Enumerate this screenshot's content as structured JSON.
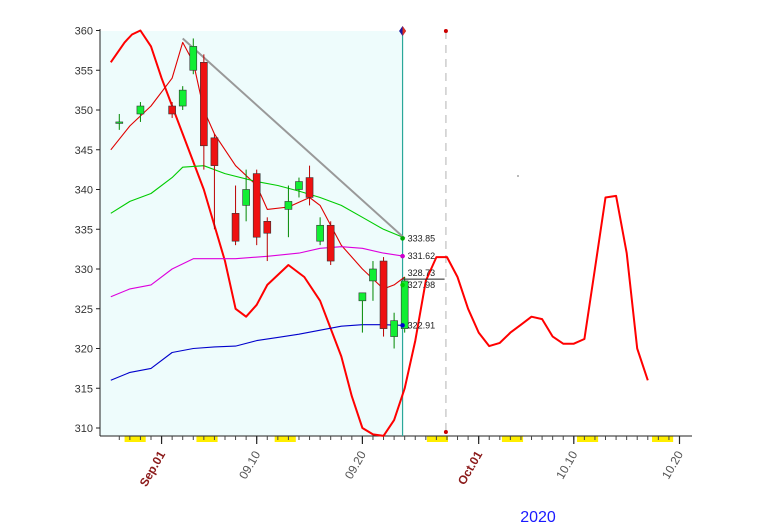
{
  "chart_data": {
    "type": "candlestick",
    "year_label": "2020",
    "ylim": [
      309,
      361
    ],
    "y_ticks": [
      310,
      315,
      320,
      325,
      330,
      335,
      340,
      345,
      350,
      355,
      360
    ],
    "x_ticks": [
      {
        "day": 1,
        "label": "Sep.01",
        "bold": true
      },
      {
        "day": 10,
        "label": "09.10",
        "bold": false
      },
      {
        "day": 20,
        "label": "09.20",
        "bold": false
      },
      {
        "day": 31,
        "label": "Oct.01",
        "bold": true
      },
      {
        "day": 40,
        "label": "10.10",
        "bold": false
      },
      {
        "day": 50,
        "label": "10.20",
        "bold": false
      }
    ],
    "xlim": [
      -3.8,
      50
    ],
    "highlight_end_day": 23.8,
    "forecast_marker_day": 27.9,
    "candles": [
      {
        "day": -3,
        "open": 348.5,
        "high": 349.5,
        "low": 347.5,
        "close": 348.5
      },
      {
        "day": -1,
        "open": 349.5,
        "high": 351.0,
        "low": 348.5,
        "close": 350.5
      },
      {
        "day": 2,
        "open": 350.5,
        "high": 351.0,
        "low": 349.0,
        "close": 349.5
      },
      {
        "day": 3,
        "open": 350.5,
        "high": 353.0,
        "low": 350.0,
        "close": 352.5
      },
      {
        "day": 4,
        "open": 355.0,
        "high": 359.0,
        "low": 354.5,
        "close": 358.0
      },
      {
        "day": 5,
        "open": 356.0,
        "high": 357.0,
        "low": 342.5,
        "close": 345.5
      },
      {
        "day": 6,
        "open": 346.5,
        "high": 347.0,
        "low": 335.0,
        "close": 343.0
      },
      {
        "day": 8,
        "open": 337.0,
        "high": 340.5,
        "low": 333.0,
        "close": 333.5
      },
      {
        "day": 9,
        "open": 338.0,
        "high": 342.5,
        "low": 336.0,
        "close": 340.0
      },
      {
        "day": 10,
        "open": 342.0,
        "high": 342.5,
        "low": 333.0,
        "close": 334.0
      },
      {
        "day": 11,
        "open": 336.0,
        "high": 336.5,
        "low": 331.0,
        "close": 334.5
      },
      {
        "day": 13,
        "open": 337.5,
        "high": 340.5,
        "low": 334.0,
        "close": 338.5
      },
      {
        "day": 14,
        "open": 340.0,
        "high": 341.5,
        "low": 339.0,
        "close": 341.0
      },
      {
        "day": 15,
        "open": 341.5,
        "high": 343.0,
        "low": 338.0,
        "close": 339.0
      },
      {
        "day": 16,
        "open": 333.5,
        "high": 336.5,
        "low": 333.0,
        "close": 335.5
      },
      {
        "day": 17,
        "open": 335.5,
        "high": 336.0,
        "low": 330.5,
        "close": 331.0
      },
      {
        "day": 20,
        "open": 326.0,
        "high": 327.0,
        "low": 322.0,
        "close": 327.0
      },
      {
        "day": 21,
        "open": 328.5,
        "high": 331.0,
        "low": 326.0,
        "close": 330.0
      },
      {
        "day": 22,
        "open": 331.0,
        "high": 331.5,
        "low": 321.5,
        "close": 322.5
      },
      {
        "day": 23,
        "open": 321.5,
        "high": 324.5,
        "low": 320.0,
        "close": 323.5
      },
      {
        "day": 24,
        "open": 322.5,
        "high": 329.0,
        "low": 322.0,
        "close": 328.5
      }
    ],
    "series": [
      {
        "key": "cycle",
        "color": "#ff0000",
        "points": [
          [
            -3.8,
            356
          ],
          [
            -2.5,
            358.5
          ],
          [
            -1.8,
            359.5
          ],
          [
            -1,
            360
          ],
          [
            0,
            358
          ],
          [
            1,
            354
          ],
          [
            3,
            347
          ],
          [
            5,
            340
          ],
          [
            7,
            331
          ],
          [
            8,
            325
          ],
          [
            9,
            324
          ],
          [
            10,
            325.5
          ],
          [
            11,
            328
          ],
          [
            13,
            330.5
          ],
          [
            14.5,
            329
          ],
          [
            16,
            326
          ],
          [
            18,
            319
          ],
          [
            19,
            314
          ],
          [
            20,
            310
          ],
          [
            21,
            309.2
          ],
          [
            22,
            309
          ],
          [
            23,
            311
          ],
          [
            24,
            315
          ],
          [
            25,
            321
          ],
          [
            26,
            328.5
          ],
          [
            27,
            331.5
          ],
          [
            28,
            331.5
          ],
          [
            29,
            329
          ],
          [
            30,
            325
          ],
          [
            31,
            322
          ],
          [
            32,
            320.3
          ],
          [
            33,
            320.7
          ],
          [
            34,
            322
          ],
          [
            35,
            323
          ],
          [
            36,
            324
          ],
          [
            37,
            323.7
          ],
          [
            38,
            321.5
          ],
          [
            39,
            320.6
          ],
          [
            40,
            320.6
          ],
          [
            41,
            321.2
          ],
          [
            42,
            330
          ],
          [
            43,
            339
          ],
          [
            44,
            339.2
          ],
          [
            45,
            332
          ],
          [
            46,
            320
          ],
          [
            47,
            316
          ]
        ]
      },
      {
        "key": "fast-ma",
        "color": "#e00000",
        "points": [
          [
            -3.8,
            345
          ],
          [
            -2,
            348
          ],
          [
            0,
            350.5
          ],
          [
            2,
            354
          ],
          [
            3,
            358.5
          ],
          [
            4,
            356
          ],
          [
            5,
            350
          ],
          [
            6,
            347
          ],
          [
            8,
            343
          ],
          [
            10,
            340.5
          ],
          [
            11,
            337.5
          ],
          [
            13,
            337.8
          ],
          [
            15,
            339
          ],
          [
            16,
            338
          ],
          [
            18,
            333
          ],
          [
            20,
            330
          ],
          [
            22,
            327.5
          ],
          [
            23,
            328
          ],
          [
            24,
            329
          ]
        ]
      },
      {
        "key": "upper-band",
        "color": "#00cc00",
        "points": [
          [
            -3.8,
            337
          ],
          [
            -2,
            338.5
          ],
          [
            0,
            339.5
          ],
          [
            2,
            341.5
          ],
          [
            3,
            342.8
          ],
          [
            5,
            343
          ],
          [
            7,
            342
          ],
          [
            10,
            341
          ],
          [
            12,
            340.5
          ],
          [
            14,
            339.8
          ],
          [
            16,
            339
          ],
          [
            18,
            338
          ],
          [
            20,
            336.5
          ],
          [
            22,
            335
          ],
          [
            24,
            333.9
          ]
        ]
      },
      {
        "key": "mid-band",
        "color": "#dd00dd",
        "points": [
          [
            -3.8,
            326.5
          ],
          [
            -2,
            327.5
          ],
          [
            0,
            328
          ],
          [
            2,
            330
          ],
          [
            4,
            331.3
          ],
          [
            6,
            331.3
          ],
          [
            8,
            331.3
          ],
          [
            11,
            331.6
          ],
          [
            14,
            332
          ],
          [
            16,
            332.6
          ],
          [
            18,
            332.8
          ],
          [
            20,
            332.6
          ],
          [
            22,
            332
          ],
          [
            24,
            331.6
          ]
        ]
      },
      {
        "key": "lower-band",
        "color": "#0000cc",
        "points": [
          [
            -3.8,
            316
          ],
          [
            -2,
            317
          ],
          [
            0,
            317.5
          ],
          [
            2,
            319.5
          ],
          [
            4,
            320
          ],
          [
            6,
            320.2
          ],
          [
            8,
            320.3
          ],
          [
            10,
            321
          ],
          [
            12,
            321.4
          ],
          [
            14,
            321.8
          ],
          [
            16,
            322.3
          ],
          [
            18,
            322.8
          ],
          [
            20,
            323
          ],
          [
            22,
            323
          ],
          [
            24,
            322.9
          ]
        ]
      }
    ],
    "trendline": {
      "color": "#999999",
      "points": [
        [
          3,
          359
        ],
        [
          24,
          333.85
        ]
      ]
    },
    "value_labels": [
      {
        "text": "333.85",
        "value": 333.85,
        "dot": "#00aa00"
      },
      {
        "text": "331.62",
        "value": 331.62,
        "dot": "#cc00cc"
      },
      {
        "text": "328.73",
        "value": 328.73,
        "dot": null
      },
      {
        "text": "327.98",
        "value": 327.98,
        "dot": "#00cc00"
      },
      {
        "text": "322.91",
        "value": 322.91,
        "dot": "#0000cc"
      }
    ],
    "ref_line_value": 328.73
  }
}
